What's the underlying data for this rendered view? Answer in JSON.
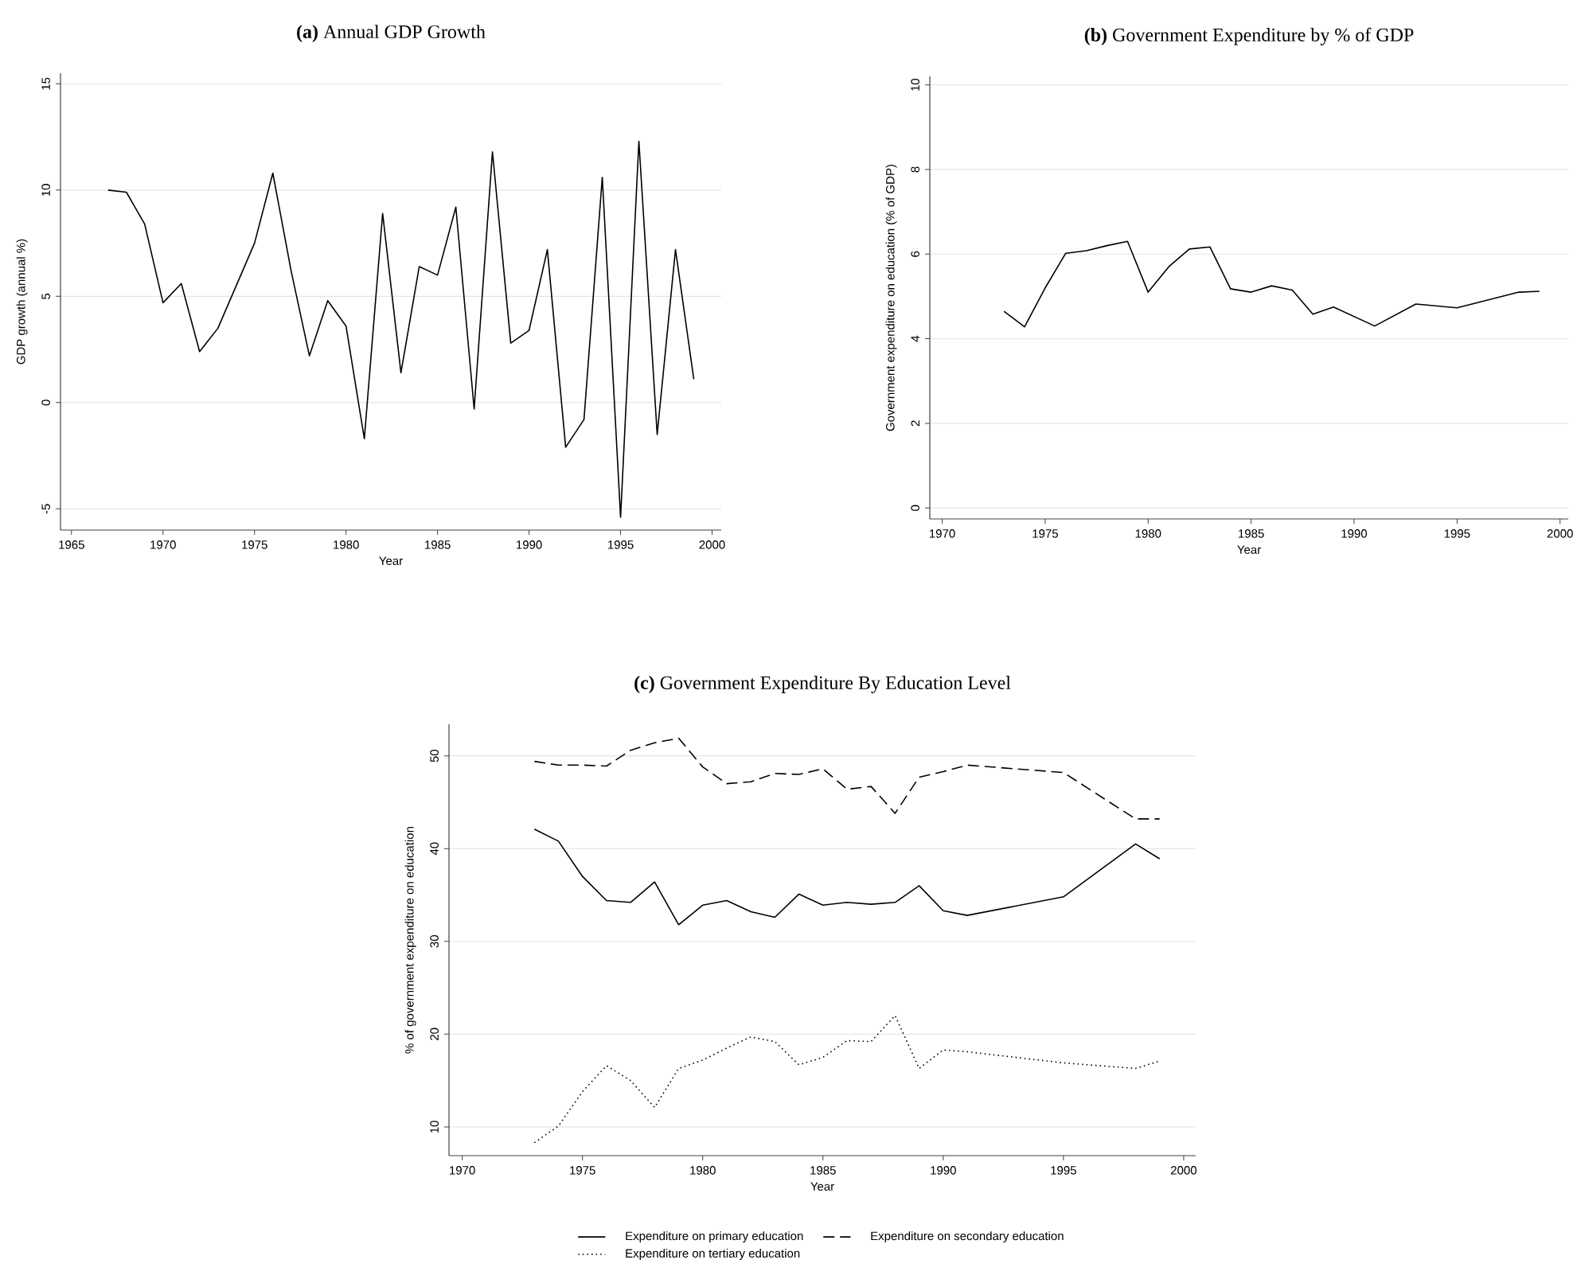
{
  "chart_data": [
    {
      "type": "line",
      "title": "**(a)** Annual GDP Growth",
      "xlabel": "Year",
      "ylabel": "GDP growth (annual %)",
      "x": [
        1967,
        1968,
        1969,
        1970,
        1971,
        1972,
        1973,
        1974,
        1975,
        1976,
        1977,
        1978,
        1979,
        1980,
        1981,
        1982,
        1983,
        1984,
        1985,
        1986,
        1987,
        1988,
        1989,
        1990,
        1991,
        1992,
        1993,
        1994,
        1995,
        1996,
        1997,
        1998,
        1999
      ],
      "values": [
        10.0,
        9.9,
        8.4,
        4.7,
        5.6,
        2.4,
        3.5,
        5.5,
        7.5,
        10.8,
        6.2,
        2.2,
        4.8,
        3.6,
        -1.7,
        8.9,
        1.4,
        6.4,
        6.0,
        9.2,
        -0.3,
        11.8,
        2.8,
        3.4,
        7.2,
        -2.1,
        -0.8,
        10.6,
        -5.4,
        12.3,
        -1.5,
        7.2,
        1.1
      ],
      "color": "#000000",
      "line_style": "solid",
      "xlim": [
        1964.4,
        2000.5
      ],
      "ylim": [
        -6,
        15.5
      ],
      "xticks": [
        1965,
        1970,
        1975,
        1980,
        1985,
        1990,
        1995,
        2000
      ],
      "yticks": [
        -5,
        0,
        5,
        10,
        15
      ],
      "grid": "y"
    },
    {
      "type": "line",
      "title": "**(b)** Government Expenditure by % of GDP",
      "xlabel": "Year",
      "ylabel": "Government expenditure on education (% of GDP)",
      "x": [
        1973,
        1974,
        1975,
        1976,
        1977,
        1978,
        1979,
        1980,
        1981,
        1982,
        1983,
        1984,
        1985,
        1986,
        1987,
        1988,
        1989,
        1991,
        1993,
        1995,
        1998,
        1999
      ],
      "values": [
        4.65,
        4.28,
        5.2,
        6.02,
        6.08,
        6.2,
        6.3,
        5.1,
        5.7,
        6.12,
        6.17,
        5.18,
        5.1,
        5.25,
        5.15,
        4.58,
        4.75,
        4.3,
        4.82,
        4.73,
        5.1,
        5.12
      ],
      "color": "#000000",
      "line_style": "solid",
      "xlim": [
        1969.4,
        2000.4
      ],
      "ylim": [
        -0.26,
        10.2
      ],
      "xticks": [
        1970,
        1975,
        1980,
        1985,
        1990,
        1995,
        2000
      ],
      "yticks": [
        0,
        2,
        4,
        6,
        8,
        10
      ],
      "grid": "y"
    },
    {
      "type": "line",
      "title": "**(c)** Government Expenditure By Education Level",
      "xlabel": "Year",
      "ylabel": "% of government expenditure on education",
      "x": [
        1973,
        1974,
        1975,
        1976,
        1977,
        1978,
        1979,
        1980,
        1981,
        1982,
        1983,
        1984,
        1985,
        1986,
        1987,
        1988,
        1989,
        1990,
        1991,
        1995,
        1998,
        1999
      ],
      "series": [
        {
          "name": "Expenditure on primary education",
          "color": "#000000",
          "line_style": "solid",
          "values": [
            42.1,
            40.8,
            37.0,
            34.4,
            34.2,
            36.4,
            31.8,
            33.9,
            34.4,
            33.2,
            32.6,
            35.1,
            33.9,
            34.2,
            34.0,
            34.2,
            36.0,
            33.3,
            32.8,
            34.8,
            40.5,
            38.9
          ]
        },
        {
          "name": "Expenditure on secondary education",
          "color": "#000000",
          "line_style": "dashed",
          "values": [
            49.4,
            49.0,
            49.0,
            48.9,
            50.6,
            51.4,
            51.9,
            48.8,
            47.0,
            47.2,
            48.1,
            48.0,
            48.6,
            46.4,
            46.7,
            43.8,
            47.7,
            48.3,
            49.0,
            48.2,
            43.2,
            43.2
          ]
        },
        {
          "name": "Expenditure on tertiary education",
          "color": "#000000",
          "line_style": "dotted",
          "values": [
            8.3,
            10.1,
            13.8,
            16.6,
            15.0,
            12.1,
            16.3,
            17.2,
            18.5,
            19.7,
            19.2,
            16.7,
            17.5,
            19.3,
            19.2,
            22.0,
            16.3,
            18.3,
            18.1,
            16.9,
            16.3,
            17.1
          ]
        }
      ],
      "xlim": [
        1969.45,
        2000.5
      ],
      "ylim": [
        6.9,
        53.4
      ],
      "xticks": [
        1970,
        1975,
        1980,
        1985,
        1990,
        1995,
        2000
      ],
      "yticks": [
        10,
        20,
        30,
        40,
        50
      ],
      "grid": "y",
      "legend": "bottom"
    }
  ]
}
